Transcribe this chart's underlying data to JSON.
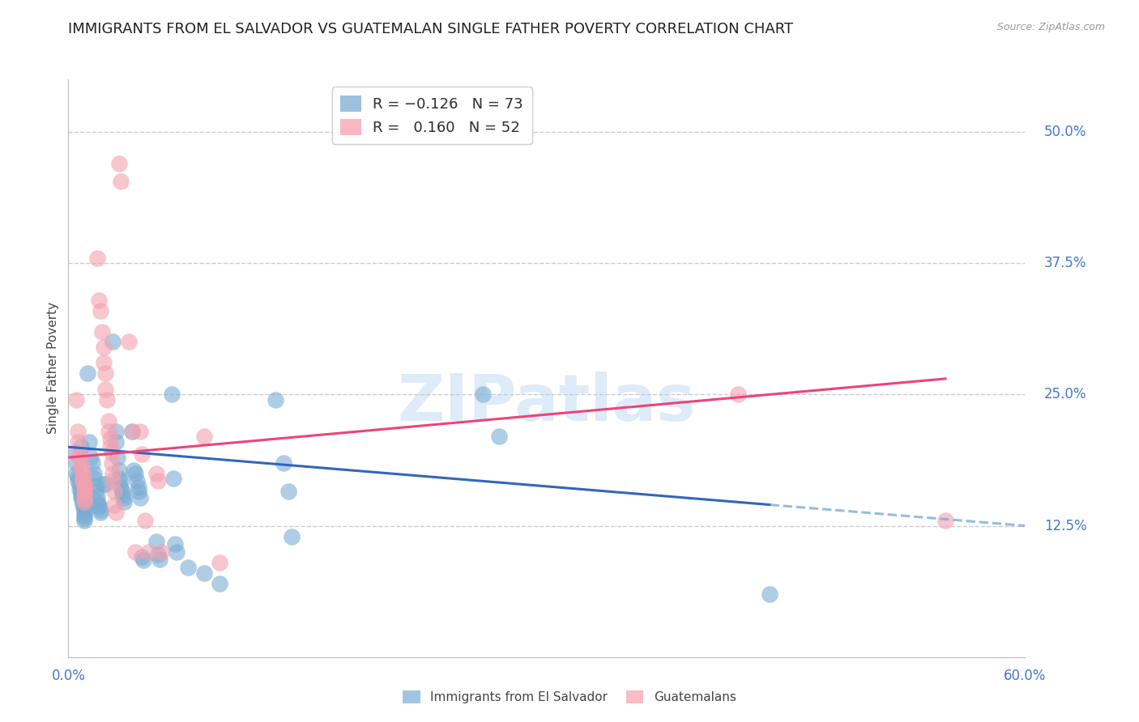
{
  "title": "IMMIGRANTS FROM EL SALVADOR VS GUATEMALAN SINGLE FATHER POVERTY CORRELATION CHART",
  "source": "Source: ZipAtlas.com",
  "ylabel": "Single Father Poverty",
  "ytick_labels": [
    "50.0%",
    "37.5%",
    "25.0%",
    "12.5%"
  ],
  "ytick_values": [
    0.5,
    0.375,
    0.25,
    0.125
  ],
  "xlim": [
    0.0,
    0.6
  ],
  "ylim": [
    0.0,
    0.55
  ],
  "watermark": "ZIPatlas",
  "blue_color": "#7aadd4",
  "pink_color": "#f4a0b0",
  "blue_line_color": "#3366bb",
  "pink_line_color": "#ee4477",
  "blue_scatter": [
    [
      0.005,
      0.195
    ],
    [
      0.005,
      0.185
    ],
    [
      0.005,
      0.175
    ],
    [
      0.006,
      0.172
    ],
    [
      0.006,
      0.168
    ],
    [
      0.007,
      0.165
    ],
    [
      0.007,
      0.16
    ],
    [
      0.008,
      0.2
    ],
    [
      0.008,
      0.158
    ],
    [
      0.008,
      0.155
    ],
    [
      0.008,
      0.152
    ],
    [
      0.009,
      0.15
    ],
    [
      0.009,
      0.148
    ],
    [
      0.009,
      0.145
    ],
    [
      0.01,
      0.143
    ],
    [
      0.01,
      0.14
    ],
    [
      0.01,
      0.138
    ],
    [
      0.01,
      0.135
    ],
    [
      0.01,
      0.132
    ],
    [
      0.01,
      0.13
    ],
    [
      0.012,
      0.27
    ],
    [
      0.013,
      0.205
    ],
    [
      0.014,
      0.19
    ],
    [
      0.015,
      0.185
    ],
    [
      0.016,
      0.175
    ],
    [
      0.016,
      0.17
    ],
    [
      0.017,
      0.163
    ],
    [
      0.017,
      0.158
    ],
    [
      0.018,
      0.153
    ],
    [
      0.018,
      0.148
    ],
    [
      0.019,
      0.145
    ],
    [
      0.019,
      0.143
    ],
    [
      0.02,
      0.14
    ],
    [
      0.02,
      0.138
    ],
    [
      0.022,
      0.165
    ],
    [
      0.023,
      0.165
    ],
    [
      0.028,
      0.3
    ],
    [
      0.03,
      0.215
    ],
    [
      0.03,
      0.205
    ],
    [
      0.031,
      0.19
    ],
    [
      0.032,
      0.178
    ],
    [
      0.032,
      0.17
    ],
    [
      0.033,
      0.168
    ],
    [
      0.033,
      0.162
    ],
    [
      0.034,
      0.158
    ],
    [
      0.034,
      0.155
    ],
    [
      0.035,
      0.152
    ],
    [
      0.035,
      0.148
    ],
    [
      0.04,
      0.215
    ],
    [
      0.041,
      0.178
    ],
    [
      0.042,
      0.175
    ],
    [
      0.043,
      0.168
    ],
    [
      0.044,
      0.162
    ],
    [
      0.044,
      0.158
    ],
    [
      0.045,
      0.152
    ],
    [
      0.046,
      0.095
    ],
    [
      0.047,
      0.092
    ],
    [
      0.055,
      0.11
    ],
    [
      0.056,
      0.098
    ],
    [
      0.057,
      0.093
    ],
    [
      0.065,
      0.25
    ],
    [
      0.066,
      0.17
    ],
    [
      0.067,
      0.108
    ],
    [
      0.068,
      0.1
    ],
    [
      0.075,
      0.085
    ],
    [
      0.085,
      0.08
    ],
    [
      0.095,
      0.07
    ],
    [
      0.13,
      0.245
    ],
    [
      0.135,
      0.185
    ],
    [
      0.138,
      0.158
    ],
    [
      0.14,
      0.115
    ],
    [
      0.26,
      0.25
    ],
    [
      0.27,
      0.21
    ],
    [
      0.44,
      0.06
    ]
  ],
  "pink_scatter": [
    [
      0.005,
      0.245
    ],
    [
      0.006,
      0.215
    ],
    [
      0.006,
      0.205
    ],
    [
      0.007,
      0.195
    ],
    [
      0.007,
      0.19
    ],
    [
      0.008,
      0.185
    ],
    [
      0.008,
      0.18
    ],
    [
      0.009,
      0.175
    ],
    [
      0.009,
      0.17
    ],
    [
      0.009,
      0.168
    ],
    [
      0.01,
      0.165
    ],
    [
      0.01,
      0.162
    ],
    [
      0.01,
      0.158
    ],
    [
      0.01,
      0.155
    ],
    [
      0.01,
      0.15
    ],
    [
      0.01,
      0.148
    ],
    [
      0.018,
      0.38
    ],
    [
      0.019,
      0.34
    ],
    [
      0.02,
      0.33
    ],
    [
      0.021,
      0.31
    ],
    [
      0.022,
      0.295
    ],
    [
      0.022,
      0.28
    ],
    [
      0.023,
      0.27
    ],
    [
      0.023,
      0.255
    ],
    [
      0.024,
      0.245
    ],
    [
      0.025,
      0.225
    ],
    [
      0.025,
      0.215
    ],
    [
      0.026,
      0.208
    ],
    [
      0.026,
      0.2
    ],
    [
      0.027,
      0.195
    ],
    [
      0.027,
      0.185
    ],
    [
      0.028,
      0.175
    ],
    [
      0.028,
      0.168
    ],
    [
      0.029,
      0.158
    ],
    [
      0.029,
      0.145
    ],
    [
      0.03,
      0.138
    ],
    [
      0.032,
      0.47
    ],
    [
      0.033,
      0.453
    ],
    [
      0.038,
      0.3
    ],
    [
      0.04,
      0.215
    ],
    [
      0.042,
      0.1
    ],
    [
      0.045,
      0.215
    ],
    [
      0.046,
      0.193
    ],
    [
      0.048,
      0.13
    ],
    [
      0.05,
      0.1
    ],
    [
      0.055,
      0.175
    ],
    [
      0.056,
      0.168
    ],
    [
      0.058,
      0.1
    ],
    [
      0.085,
      0.21
    ],
    [
      0.095,
      0.09
    ],
    [
      0.42,
      0.25
    ],
    [
      0.55,
      0.13
    ]
  ],
  "blue_regression": {
    "x_start": 0.0,
    "y_start": 0.2,
    "x_end": 0.44,
    "y_end": 0.145
  },
  "pink_regression": {
    "x_start": 0.0,
    "y_start": 0.19,
    "x_end": 0.55,
    "y_end": 0.265
  },
  "blue_dash_regression": {
    "x_start": 0.44,
    "y_start": 0.145,
    "x_end": 0.6,
    "y_end": 0.125
  },
  "background_color": "#ffffff",
  "grid_color": "#cccccc",
  "title_fontsize": 13,
  "label_fontsize": 11,
  "tick_fontsize": 12,
  "axis_color": "#4477cc",
  "legend_r_color": "#333333",
  "legend_n_color": "#2266cc"
}
